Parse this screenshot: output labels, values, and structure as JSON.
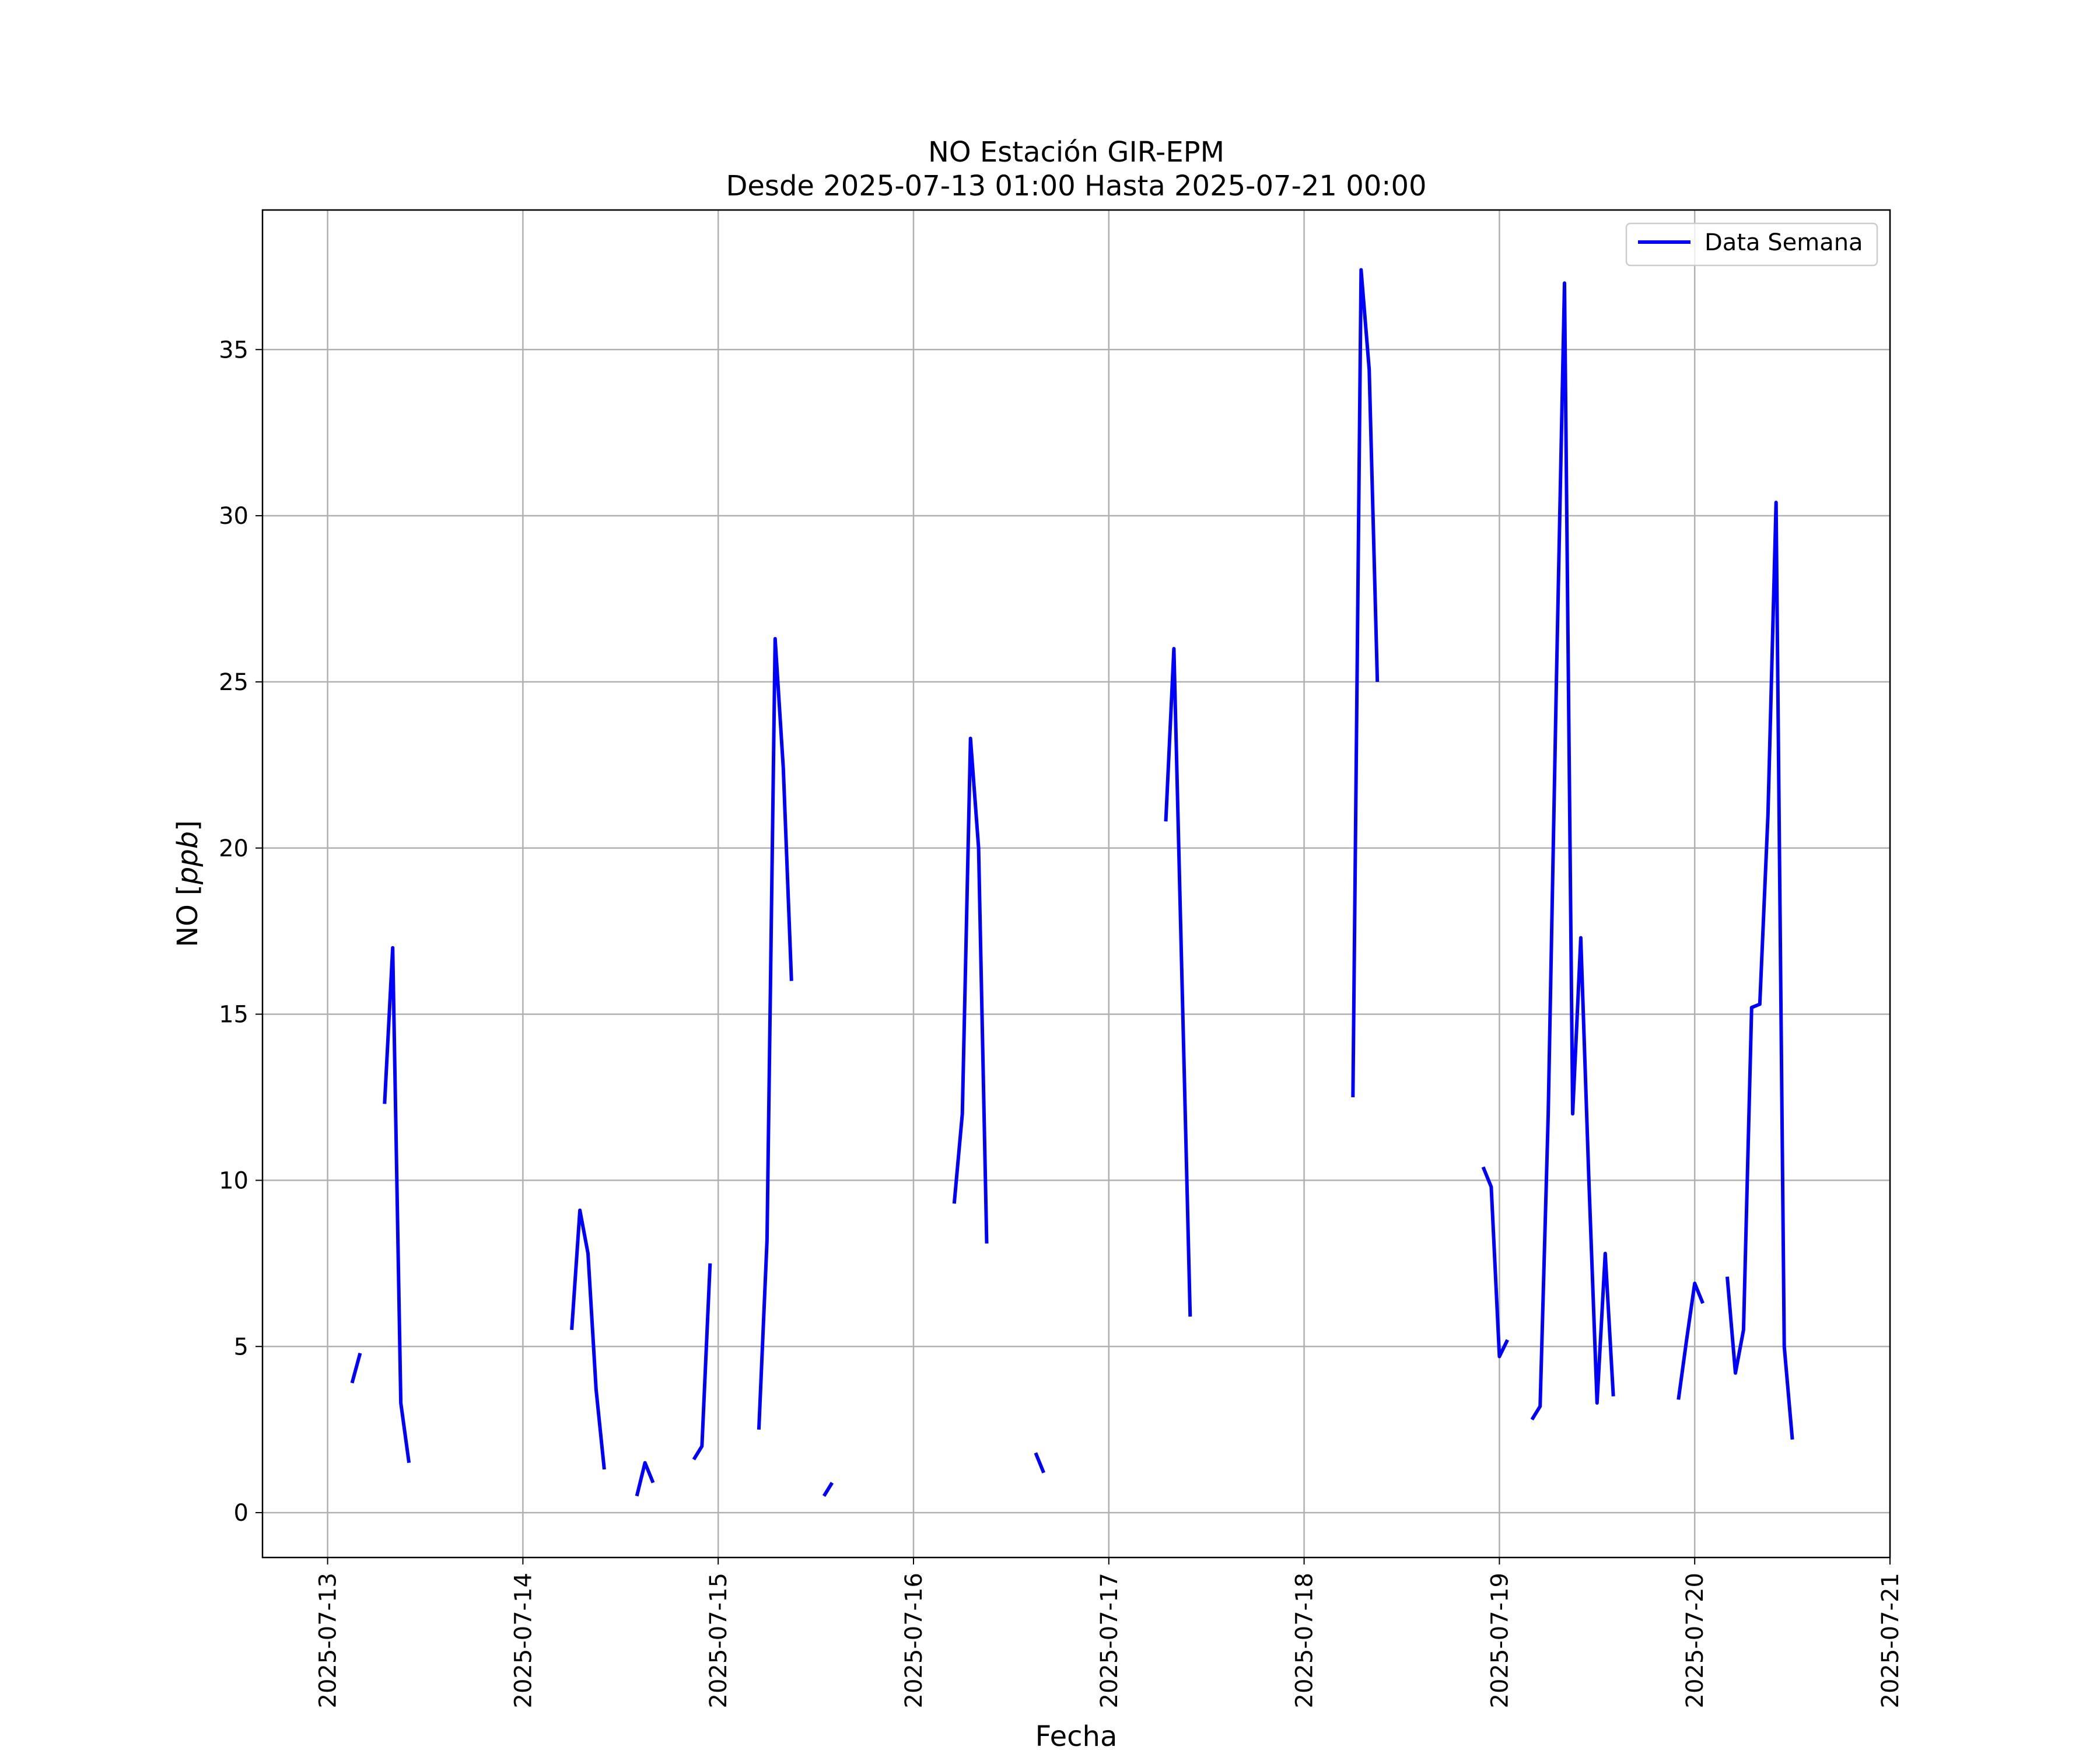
{
  "chart_data": {
    "type": "line",
    "title": "NO Estación GIR-EPM",
    "subtitle": "Desde 2025-07-13 01:00 Hasta 2025-07-21 00:00",
    "xlabel": "Fecha",
    "ylabel_prefix": "NO [",
    "ylabel_unit": "ppb",
    "ylabel_suffix": "]",
    "xlim": [
      "2025-07-12 16:00",
      "2025-07-21 00:00"
    ],
    "ylim": [
      -1.35,
      39.2
    ],
    "grid": true,
    "legend_position": "top-right",
    "x_ticks": [
      "2025-07-13",
      "2025-07-14",
      "2025-07-15",
      "2025-07-16",
      "2025-07-17",
      "2025-07-18",
      "2025-07-19",
      "2025-07-20",
      "2025-07-21"
    ],
    "y_ticks": [
      0,
      5,
      10,
      15,
      20,
      25,
      30,
      35
    ],
    "colors": {
      "series": "#0000ff",
      "grid": "#b0b0b0"
    },
    "series": [
      {
        "name": "Data Semana",
        "segments": [
          [
            [
              "2025-07-13 03:00",
              3.9
            ],
            [
              "2025-07-13 04:00",
              4.8
            ]
          ],
          [
            [
              "2025-07-13 07:00",
              12.3
            ],
            [
              "2025-07-13 08:00",
              17.0
            ],
            [
              "2025-07-13 09:00",
              3.3
            ],
            [
              "2025-07-13 10:00",
              1.5
            ]
          ],
          [
            [
              "2025-07-14 06:00",
              5.5
            ],
            [
              "2025-07-14 07:00",
              9.1
            ],
            [
              "2025-07-14 08:00",
              7.8
            ],
            [
              "2025-07-14 09:00",
              3.7
            ],
            [
              "2025-07-14 10:00",
              1.3
            ]
          ],
          [
            [
              "2025-07-14 14:00",
              0.5
            ],
            [
              "2025-07-14 15:00",
              1.5
            ],
            [
              "2025-07-14 16:00",
              0.9
            ]
          ],
          [
            [
              "2025-07-14 21:00",
              1.6
            ],
            [
              "2025-07-14 22:00",
              2.0
            ],
            [
              "2025-07-14 23:00",
              7.5
            ]
          ],
          [
            [
              "2025-07-15 05:00",
              2.5
            ],
            [
              "2025-07-15 06:00",
              8.2
            ],
            [
              "2025-07-15 07:00",
              26.3
            ],
            [
              "2025-07-15 08:00",
              22.4
            ],
            [
              "2025-07-15 09:00",
              16.0
            ]
          ],
          [
            [
              "2025-07-15 13:00",
              0.5
            ],
            [
              "2025-07-15 14:00",
              0.9
            ]
          ],
          [
            [
              "2025-07-16 05:00",
              9.3
            ],
            [
              "2025-07-16 06:00",
              12.0
            ],
            [
              "2025-07-16 07:00",
              23.3
            ],
            [
              "2025-07-16 08:00",
              20.0
            ],
            [
              "2025-07-16 09:00",
              8.1
            ]
          ],
          [
            [
              "2025-07-16 15:00",
              1.8
            ],
            [
              "2025-07-16 16:00",
              1.2
            ]
          ],
          [
            [
              "2025-07-17 07:00",
              20.8
            ],
            [
              "2025-07-17 08:00",
              26.0
            ],
            [
              "2025-07-17 09:00",
              16.0
            ],
            [
              "2025-07-17 10:00",
              5.9
            ]
          ],
          [
            [
              "2025-07-18 06:00",
              12.5
            ],
            [
              "2025-07-18 07:00",
              37.4
            ],
            [
              "2025-07-18 08:00",
              34.4
            ],
            [
              "2025-07-18 09:00",
              25.0
            ]
          ],
          [
            [
              "2025-07-18 22:00",
              10.4
            ],
            [
              "2025-07-18 23:00",
              9.8
            ],
            [
              "2025-07-19 00:00",
              4.7
            ],
            [
              "2025-07-19 01:00",
              5.2
            ]
          ],
          [
            [
              "2025-07-19 04:00",
              2.8
            ],
            [
              "2025-07-19 05:00",
              3.2
            ],
            [
              "2025-07-19 06:00",
              12.0
            ],
            [
              "2025-07-19 07:00",
              25.0
            ],
            [
              "2025-07-19 08:00",
              37.0
            ],
            [
              "2025-07-19 09:00",
              12.0
            ],
            [
              "2025-07-19 10:00",
              17.3
            ],
            [
              "2025-07-19 11:00",
              10.0
            ],
            [
              "2025-07-19 12:00",
              3.3
            ],
            [
              "2025-07-19 13:00",
              7.8
            ],
            [
              "2025-07-19 14:00",
              3.5
            ]
          ],
          [
            [
              "2025-07-19 22:00",
              3.4
            ],
            [
              "2025-07-19 23:00",
              5.2
            ],
            [
              "2025-07-20 00:00",
              6.9
            ],
            [
              "2025-07-20 01:00",
              6.3
            ]
          ],
          [
            [
              "2025-07-20 04:00",
              7.1
            ],
            [
              "2025-07-20 05:00",
              4.2
            ],
            [
              "2025-07-20 06:00",
              5.5
            ],
            [
              "2025-07-20 07:00",
              15.2
            ],
            [
              "2025-07-20 08:00",
              15.3
            ],
            [
              "2025-07-20 09:00",
              21.0
            ],
            [
              "2025-07-20 10:00",
              30.4
            ],
            [
              "2025-07-20 11:00",
              5.0
            ],
            [
              "2025-07-20 12:00",
              2.2
            ]
          ]
        ]
      }
    ]
  }
}
